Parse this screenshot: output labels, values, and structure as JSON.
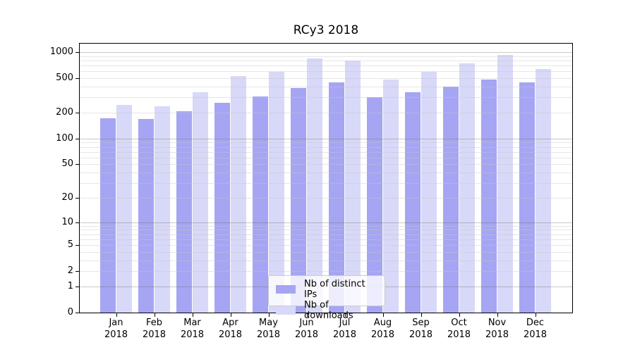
{
  "chart_data": {
    "type": "bar",
    "title": "RCy3 2018",
    "categories": [
      "Jan",
      "Feb",
      "Mar",
      "Apr",
      "May",
      "Jun",
      "Jul",
      "Aug",
      "Sep",
      "Oct",
      "Nov",
      "Dec"
    ],
    "year": "2018",
    "series": [
      {
        "name": "Nb of distinct IPs",
        "color": "#a5a5f3",
        "values": [
          173,
          169,
          209,
          260,
          310,
          385,
          448,
          303,
          345,
          400,
          480,
          450
        ]
      },
      {
        "name": "Nb of downloads",
        "color": "#d8d8f8",
        "values": [
          246,
          237,
          345,
          533,
          590,
          850,
          805,
          480,
          597,
          745,
          935,
          637
        ]
      }
    ],
    "xlabel": "",
    "ylabel": "",
    "yscale": "log1p",
    "ylim": [
      0,
      1250
    ],
    "y_ticks": [
      0,
      1,
      2,
      5,
      10,
      20,
      50,
      100,
      200,
      500,
      1000
    ],
    "grid": {
      "on": true,
      "major": [
        1,
        10,
        100,
        1000
      ],
      "minor": [
        2,
        3,
        4,
        5,
        6,
        7,
        8,
        9,
        20,
        30,
        40,
        50,
        60,
        70,
        80,
        90,
        200,
        300,
        400,
        500,
        600,
        700,
        800,
        900
      ]
    },
    "legend_position": "lower center inside plot",
    "colors": {
      "grid_major": "#c6c6c6",
      "grid_minor": "#e6e6e6",
      "axis_frame": "#000000",
      "background": "#ffffff"
    }
  }
}
